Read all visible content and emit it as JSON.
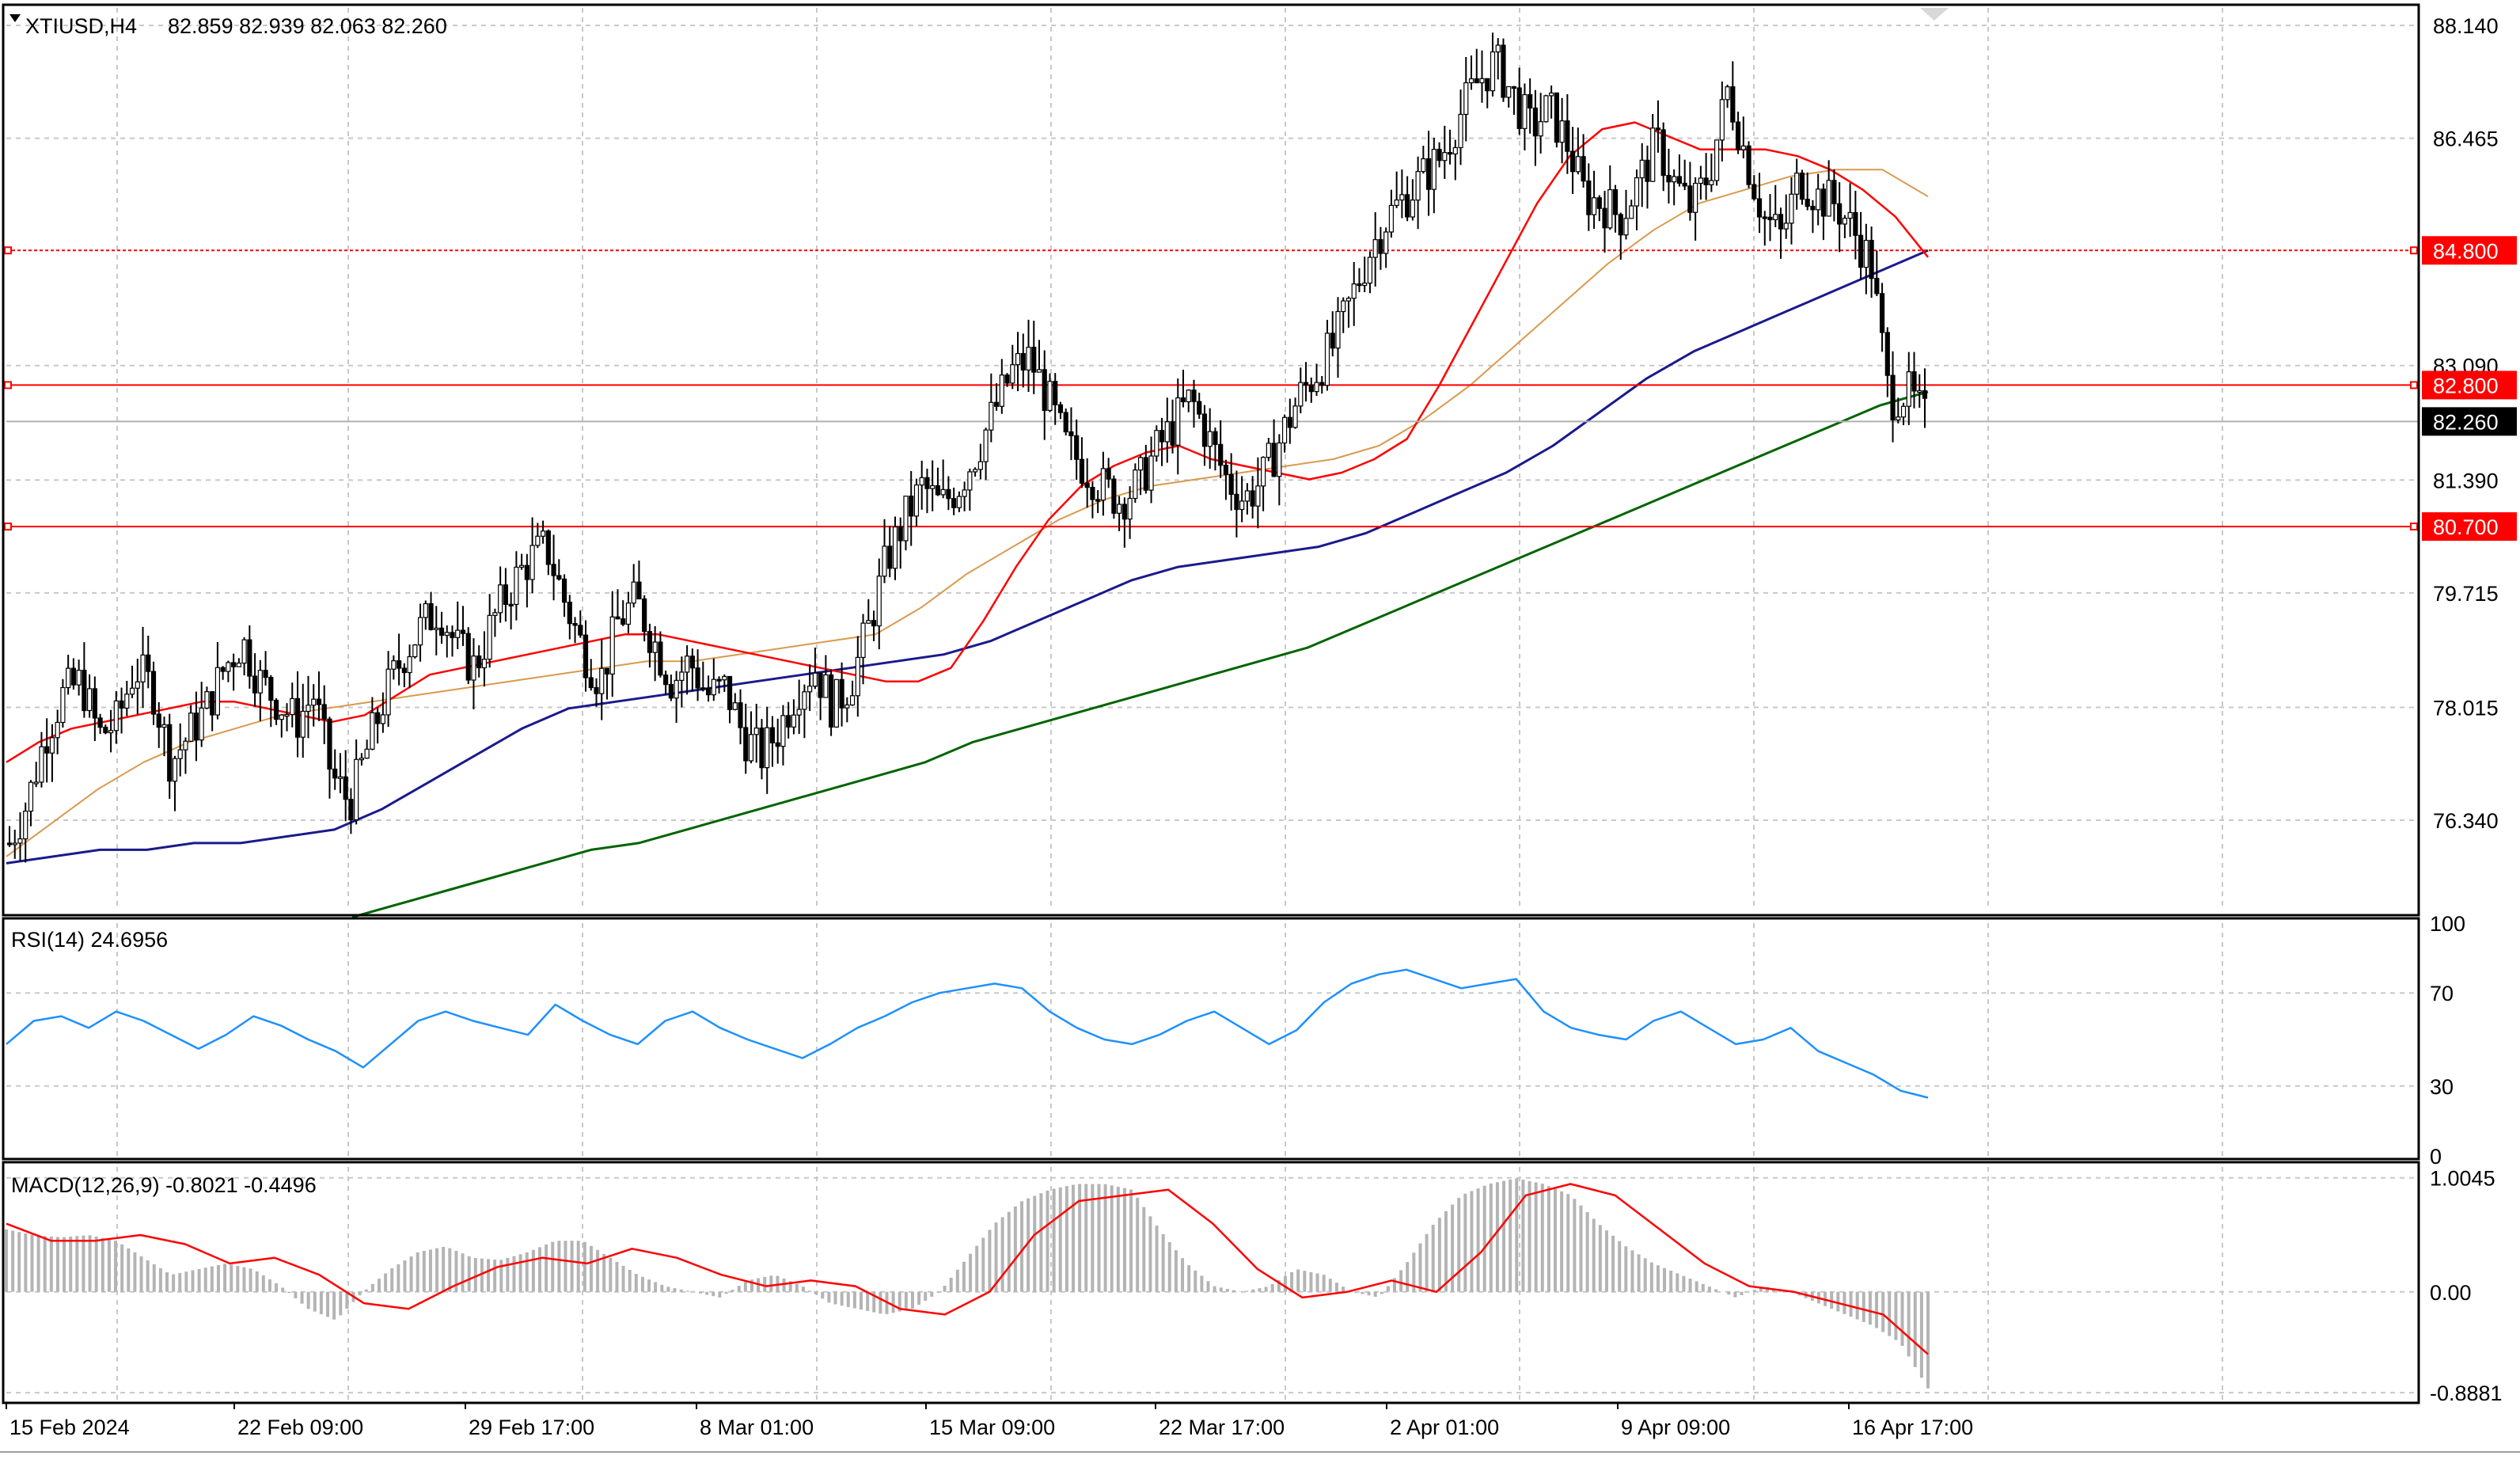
{
  "header": {
    "symbol": "XTIUSD,H4",
    "ohlc": "82.859 82.939 82.063 82.260"
  },
  "colors": {
    "candle": "#000000",
    "sma_fast": "#ff0000",
    "sma_mid": "#d99a4e",
    "sma_slow": "#1a1a8c",
    "sma_long": "#006400",
    "level": "#ff0000",
    "rsi": "#1e90ff",
    "macd_signal": "#ff0000",
    "macd_hist": "#b4b4b4",
    "grid": "#c8c8c8"
  },
  "chart_data": [
    {
      "type": "candlestick",
      "title": "XTIUSD,H4 82.859 82.939 82.063 82.260",
      "yticks": [
        "88.140",
        "86.465",
        "84.800",
        "83.090",
        "82.800",
        "82.260",
        "81.390",
        "80.700",
        "79.715",
        "78.015",
        "76.340"
      ],
      "ylim": [
        75.0,
        88.4
      ],
      "xticks": [
        "15 Feb 2024",
        "22 Feb 09:00",
        "29 Feb 17:00",
        "8 Mar 01:00",
        "15 Mar 09:00",
        "22 Mar 17:00",
        "2 Apr 01:00",
        "9 Apr 09:00",
        "16 Apr 17:00"
      ],
      "levels": [
        84.8,
        82.8,
        80.7
      ],
      "last_price": 82.26,
      "price_path": [
        76.0,
        76.6,
        77.6,
        78.2,
        78.4,
        77.6,
        77.8,
        78.6,
        78.3,
        77.2,
        77.6,
        78.0,
        78.6,
        79.0,
        78.4,
        78.1,
        77.8,
        78.2,
        77.0,
        76.6,
        77.4,
        78.2,
        78.8,
        79.2,
        79.5,
        78.9,
        78.6,
        79.3,
        79.8,
        80.2,
        80.4,
        79.6,
        78.9,
        78.4,
        79.3,
        79.6,
        79.0,
        78.4,
        78.7,
        78.2,
        78.3,
        77.6,
        77.3,
        77.7,
        78.3,
        78.6,
        78.0,
        78.4,
        79.2,
        80.2,
        80.8,
        81.3,
        81.0,
        81.3,
        81.8,
        82.4,
        83.0,
        83.2,
        82.6,
        81.9,
        81.6,
        81.3,
        81.1,
        81.3,
        81.8,
        82.2,
        82.6,
        82.0,
        81.4,
        81.1,
        81.4,
        82.0,
        82.6,
        83.0,
        83.4,
        84.1,
        84.8,
        85.3,
        85.6,
        85.9,
        86.2,
        86.8,
        87.3,
        87.6,
        87.1,
        86.6,
        86.9,
        86.4,
        85.6,
        85.5,
        85.3,
        85.8,
        86.4,
        85.8,
        85.4,
        86.0,
        87.2,
        86.2,
        85.3,
        85.0,
        85.9,
        85.6,
        85.5,
        85.1,
        84.6,
        82.6,
        82.7,
        82.3
      ],
      "sma_fast": [
        77.2,
        77.5,
        77.7,
        77.8,
        77.9,
        78.0,
        78.1,
        78.1,
        78.0,
        77.9,
        77.8,
        77.9,
        78.2,
        78.5,
        78.6,
        78.7,
        78.8,
        78.9,
        79.0,
        79.1,
        79.1,
        79.0,
        78.9,
        78.8,
        78.7,
        78.6,
        78.5,
        78.4,
        78.4,
        78.6,
        79.3,
        80.1,
        80.8,
        81.3,
        81.6,
        81.8,
        81.9,
        81.7,
        81.6,
        81.5,
        81.4,
        81.5,
        81.7,
        82.0,
        82.8,
        83.7,
        84.6,
        85.5,
        86.2,
        86.6,
        86.7,
        86.5,
        86.3,
        86.3,
        86.3,
        86.2,
        86.0,
        85.7,
        85.3,
        84.7
      ],
      "sma_mid": [
        75.8,
        76.3,
        76.8,
        77.2,
        77.5,
        77.7,
        77.9,
        78.0,
        78.1,
        78.2,
        78.3,
        78.4,
        78.5,
        78.6,
        78.7,
        78.7,
        78.8,
        78.9,
        79.0,
        79.1,
        79.5,
        80.0,
        80.4,
        80.8,
        81.1,
        81.3,
        81.4,
        81.5,
        81.6,
        81.7,
        81.9,
        82.3,
        82.8,
        83.4,
        84.0,
        84.6,
        85.1,
        85.5,
        85.7,
        85.9,
        86.0,
        86.0,
        85.6
      ],
      "sma_slow": [
        75.7,
        75.8,
        75.9,
        75.9,
        76.0,
        76.0,
        76.1,
        76.2,
        76.5,
        76.9,
        77.3,
        77.7,
        78.0,
        78.1,
        78.2,
        78.3,
        78.4,
        78.5,
        78.6,
        78.7,
        78.8,
        79.0,
        79.3,
        79.6,
        79.9,
        80.1,
        80.2,
        80.3,
        80.4,
        80.6,
        80.9,
        81.2,
        81.5,
        81.9,
        82.4,
        82.9,
        83.3,
        83.6,
        83.9,
        84.2,
        84.5,
        84.8
      ],
      "sma_long": [
        74.9,
        75.1,
        75.3,
        75.5,
        75.7,
        75.9,
        76.0,
        76.2,
        76.4,
        76.6,
        76.8,
        77.0,
        77.2,
        77.5,
        77.7,
        77.9,
        78.1,
        78.3,
        78.5,
        78.7,
        78.9,
        79.2,
        79.5,
        79.8,
        80.1,
        80.4,
        80.7,
        81.0,
        81.3,
        81.6,
        81.9,
        82.2,
        82.5,
        82.7
      ]
    },
    {
      "type": "line",
      "title": "RSI(14) 24.6956",
      "yticks": [
        "100",
        "70",
        "30",
        "0"
      ],
      "ylim": [
        0,
        100
      ],
      "values": [
        48,
        58,
        60,
        55,
        62,
        58,
        52,
        46,
        52,
        60,
        56,
        50,
        45,
        38,
        48,
        58,
        62,
        58,
        55,
        52,
        65,
        58,
        52,
        48,
        58,
        62,
        55,
        50,
        46,
        42,
        48,
        55,
        60,
        66,
        70,
        72,
        74,
        72,
        62,
        55,
        50,
        48,
        52,
        58,
        62,
        55,
        48,
        54,
        66,
        74,
        78,
        80,
        76,
        72,
        74,
        76,
        62,
        55,
        52,
        50,
        58,
        62,
        55,
        48,
        50,
        55,
        45,
        40,
        35,
        28,
        25
      ]
    },
    {
      "type": "bar",
      "title": "MACD(12,26,9) -0.8021 -0.4496",
      "yticks": [
        "1.0045",
        "0.00",
        "-0.8881"
      ],
      "ylim": [
        -0.95,
        1.1
      ],
      "histogram": [
        0.55,
        0.5,
        0.48,
        0.5,
        0.45,
        0.3,
        0.15,
        0.2,
        0.25,
        0.2,
        0.05,
        -0.15,
        -0.25,
        0.0,
        0.2,
        0.35,
        0.4,
        0.3,
        0.28,
        0.35,
        0.45,
        0.45,
        0.3,
        0.15,
        0.05,
        0.0,
        -0.05,
        0.1,
        0.15,
        0.05,
        -0.1,
        -0.15,
        -0.2,
        -0.15,
        0.0,
        0.3,
        0.6,
        0.8,
        0.9,
        0.95,
        0.95,
        0.9,
        0.55,
        0.25,
        0.05,
        0.0,
        0.05,
        0.2,
        0.15,
        0.0,
        -0.05,
        0.25,
        0.6,
        0.85,
        0.95,
        1.0,
        0.95,
        0.85,
        0.6,
        0.4,
        0.25,
        0.15,
        0.05,
        -0.05,
        0.05,
        0.0,
        -0.1,
        -0.2,
        -0.3,
        -0.45,
        -0.85
      ],
      "signal": [
        0.6,
        0.45,
        0.45,
        0.5,
        0.42,
        0.25,
        0.3,
        0.15,
        -0.1,
        -0.15,
        0.05,
        0.22,
        0.3,
        0.25,
        0.38,
        0.3,
        0.15,
        0.05,
        0.1,
        0.05,
        -0.15,
        -0.2,
        0.0,
        0.5,
        0.8,
        0.85,
        0.9,
        0.6,
        0.2,
        -0.05,
        0.0,
        0.1,
        0.0,
        0.35,
        0.85,
        0.95,
        0.85,
        0.55,
        0.25,
        0.05,
        0.0,
        -0.1,
        -0.2,
        -0.55
      ]
    }
  ]
}
